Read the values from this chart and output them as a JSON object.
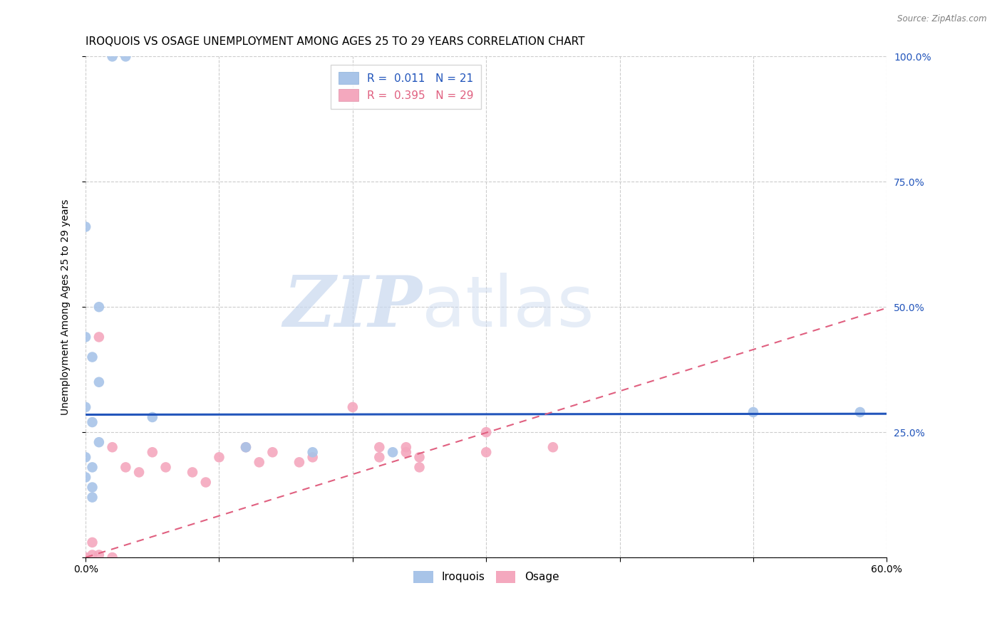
{
  "title": "IROQUOIS VS OSAGE UNEMPLOYMENT AMONG AGES 25 TO 29 YEARS CORRELATION CHART",
  "source": "Source: ZipAtlas.com",
  "ylabel": "Unemployment Among Ages 25 to 29 years",
  "xlim": [
    0,
    0.6
  ],
  "ylim": [
    0,
    1.0
  ],
  "iroquois_R": 0.011,
  "iroquois_N": 21,
  "osage_R": 0.395,
  "osage_N": 29,
  "iroquois_color": "#a8c4e8",
  "osage_color": "#f4a8be",
  "iroquois_line_color": "#2255bb",
  "osage_line_color": "#e06080",
  "background_color": "#ffffff",
  "watermark_zip": "ZIP",
  "watermark_atlas": "atlas",
  "grid_color": "#cccccc",
  "iroquois_x": [
    0.02,
    0.03,
    0.0,
    0.01,
    0.0,
    0.005,
    0.01,
    0.0,
    0.005,
    0.01,
    0.0,
    0.005,
    0.0,
    0.005,
    0.005,
    0.05,
    0.12,
    0.17,
    0.23,
    0.5,
    0.58
  ],
  "iroquois_y": [
    1.0,
    1.0,
    0.66,
    0.5,
    0.44,
    0.4,
    0.35,
    0.3,
    0.27,
    0.23,
    0.2,
    0.18,
    0.16,
    0.14,
    0.12,
    0.28,
    0.22,
    0.21,
    0.21,
    0.29,
    0.29
  ],
  "osage_x": [
    0.0,
    0.005,
    0.005,
    0.01,
    0.01,
    0.02,
    0.02,
    0.03,
    0.04,
    0.05,
    0.06,
    0.08,
    0.09,
    0.1,
    0.12,
    0.13,
    0.14,
    0.16,
    0.17,
    0.2,
    0.22,
    0.22,
    0.24,
    0.24,
    0.25,
    0.25,
    0.3,
    0.3,
    0.35
  ],
  "osage_y": [
    0.0,
    0.03,
    0.005,
    0.005,
    0.44,
    0.0,
    0.22,
    0.18,
    0.17,
    0.21,
    0.18,
    0.17,
    0.15,
    0.2,
    0.22,
    0.19,
    0.21,
    0.19,
    0.2,
    0.3,
    0.22,
    0.2,
    0.22,
    0.21,
    0.2,
    0.18,
    0.25,
    0.21,
    0.22
  ],
  "title_fontsize": 11,
  "axis_fontsize": 10,
  "legend_fontsize": 11,
  "marker_size": 110,
  "iroquois_line_y_intercept": 0.285,
  "iroquois_line_slope": 0.003,
  "osage_line_y_intercept": 0.0,
  "osage_line_slope": 0.83
}
